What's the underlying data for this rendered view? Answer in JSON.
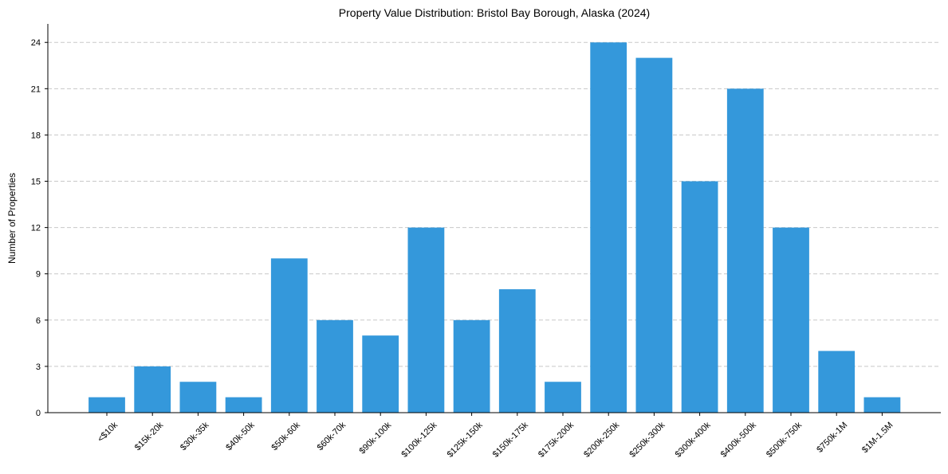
{
  "chart_data": {
    "type": "bar",
    "title": "Property Value Distribution: Bristol Bay Borough, Alaska (2024)",
    "xlabel": "",
    "ylabel": "Number of Properties",
    "categories": [
      "<$10k",
      "$15k-20k",
      "$30k-35k",
      "$40k-50k",
      "$50k-60k",
      "$60k-70k",
      "$90k-100k",
      "$100k-125k",
      "$125k-150k",
      "$150k-175k",
      "$175k-200k",
      "$200k-250k",
      "$250k-300k",
      "$300k-400k",
      "$400k-500k",
      "$500k-750k",
      "$750k-1M",
      "$1M-1.5M"
    ],
    "values": [
      1,
      3,
      2,
      1,
      10,
      6,
      5,
      12,
      6,
      8,
      2,
      24,
      23,
      15,
      21,
      12,
      4,
      1
    ],
    "yticks": [
      0,
      3,
      6,
      9,
      12,
      15,
      18,
      21,
      24
    ],
    "ylim": [
      0,
      25.2
    ],
    "grid": "horizontal dashed",
    "bar_color": "#3498db",
    "grid_color": "#c8c8c8"
  }
}
